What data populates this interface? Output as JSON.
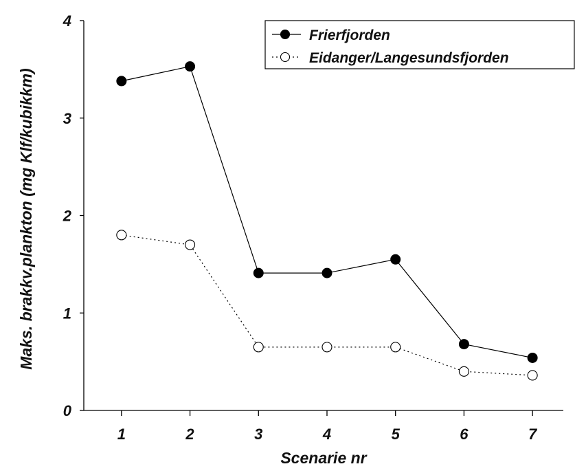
{
  "chart_data": {
    "type": "line",
    "xlabel": "Scenarie nr",
    "ylabel": "Maks. brakkv.plankton (mg Klf/kubikkm)",
    "categories": [
      "1",
      "2",
      "3",
      "4",
      "5",
      "6",
      "7"
    ],
    "x": [
      1,
      2,
      3,
      4,
      5,
      6,
      7
    ],
    "xlim": [
      0.45,
      7.45
    ],
    "ylim": [
      0,
      4
    ],
    "yticks": [
      0,
      1,
      2,
      3,
      4
    ],
    "ytick_labels": [
      "0",
      "1",
      "2",
      "3",
      "4"
    ],
    "grid": false,
    "legend_position": "top-right",
    "series": [
      {
        "name": "Frierfjorden",
        "values": [
          3.38,
          3.53,
          1.41,
          1.41,
          1.55,
          0.68,
          0.54
        ],
        "marker": "filled-circle",
        "line": "solid",
        "color": "#000000"
      },
      {
        "name": "Eidanger/Langesundsfjorden",
        "values": [
          1.8,
          1.7,
          0.65,
          0.65,
          0.65,
          0.4,
          0.36
        ],
        "marker": "open-circle",
        "line": "dotted",
        "color": "#000000"
      }
    ]
  }
}
